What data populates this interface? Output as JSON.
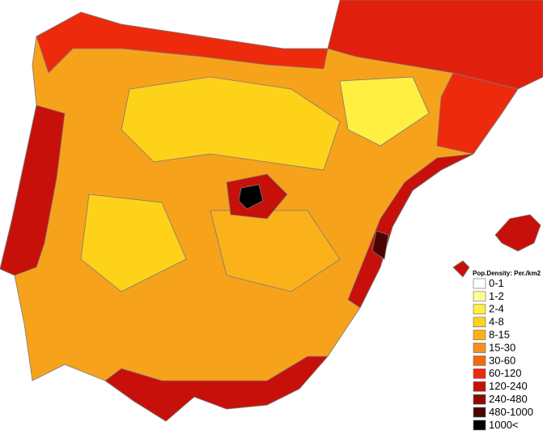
{
  "legend": {
    "title": "Pop.Density: Per./km2",
    "items": [
      {
        "label": "0-1",
        "color": "#ffffff"
      },
      {
        "label": "1-2",
        "color": "#ffff99"
      },
      {
        "label": "2-4",
        "color": "#ffef40"
      },
      {
        "label": "4-8",
        "color": "#ffd21a"
      },
      {
        "label": "8-15",
        "color": "#fbb21a"
      },
      {
        "label": "15-30",
        "color": "#f7901e"
      },
      {
        "label": "30-60",
        "color": "#f56a0f"
      },
      {
        "label": "60-120",
        "color": "#ee2a0c"
      },
      {
        "label": "120-240",
        "color": "#c8100a"
      },
      {
        "label": "240-480",
        "color": "#8c0a06"
      },
      {
        "label": "480-1000",
        "color": "#4a0402"
      },
      {
        "label": "1000<",
        "color": "#000000"
      }
    ]
  }
}
